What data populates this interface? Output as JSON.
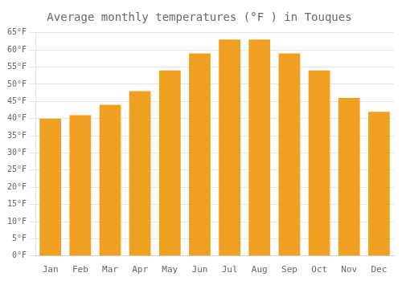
{
  "chart_data": {
    "type": "bar",
    "title": "Average monthly temperatures (°F ) in Touques",
    "categories": [
      "Jan",
      "Feb",
      "Mar",
      "Apr",
      "May",
      "Jun",
      "Jul",
      "Aug",
      "Sep",
      "Oct",
      "Nov",
      "Dec"
    ],
    "values": [
      40,
      41,
      44,
      48,
      54,
      59,
      63,
      63,
      59,
      54,
      46,
      42
    ],
    "color": "#F0A020",
    "ylim": [
      0,
      65
    ],
    "yticks": [
      {
        "value": 0,
        "label": "0°F"
      },
      {
        "value": 5,
        "label": "5°F"
      },
      {
        "value": 10,
        "label": "10°F"
      },
      {
        "value": 15,
        "label": "15°F"
      },
      {
        "value": 20,
        "label": "20°F"
      },
      {
        "value": 25,
        "label": "25°F"
      },
      {
        "value": 30,
        "label": "30°F"
      },
      {
        "value": 35,
        "label": "35°F"
      },
      {
        "value": 40,
        "label": "40°F"
      },
      {
        "value": 45,
        "label": "45°F"
      },
      {
        "value": 50,
        "label": "50°F"
      },
      {
        "value": 55,
        "label": "55°F"
      },
      {
        "value": 60,
        "label": "60°F"
      },
      {
        "value": 65,
        "label": "65°F"
      }
    ],
    "grid": true
  }
}
